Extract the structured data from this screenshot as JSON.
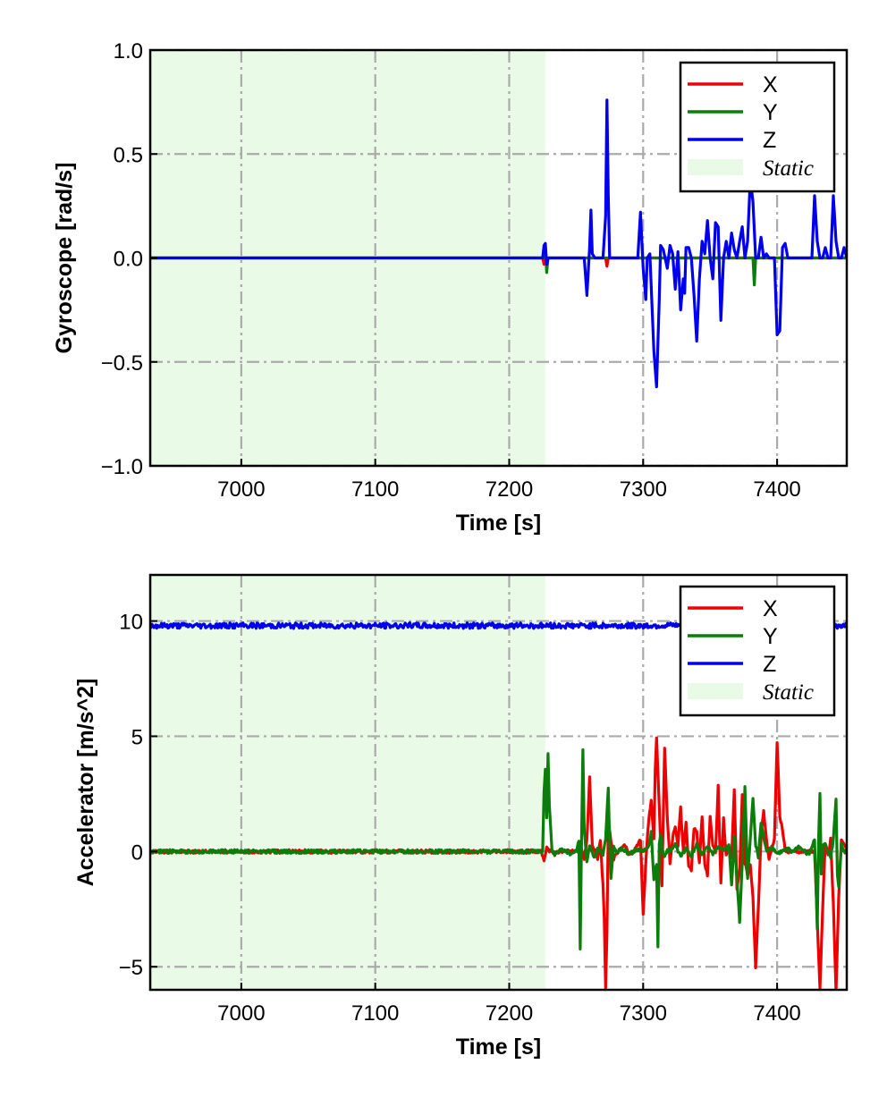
{
  "chart_data": [
    {
      "type": "line",
      "xlabel": "Time [s]",
      "ylabel": "Gyroscope [rad/s]",
      "xlim": [
        6932,
        7452
      ],
      "ylim": [
        -1.0,
        1.0
      ],
      "xticks": [
        7000,
        7100,
        7200,
        7300,
        7400
      ],
      "xtick_labels": [
        "7000",
        "7100",
        "7200",
        "7300",
        "7400"
      ],
      "yticks": [
        -1.0,
        -0.5,
        0.0,
        0.5,
        1.0
      ],
      "ytick_labels": [
        "−1.0",
        "−0.5",
        "0.0",
        "0.5",
        "1.0"
      ],
      "grid": true,
      "legend_position": "top-right",
      "static_region": {
        "label": "Static",
        "x": [
          6932,
          7227
        ],
        "color": "#e9fbe7"
      },
      "series": [
        {
          "name": "X",
          "color": "#ee0000",
          "x": [
            6932,
            7225,
            7226,
            7227,
            7228,
            7229,
            7272,
            7273,
            7274,
            7452
          ],
          "values": [
            0,
            0,
            -0.03,
            0.03,
            -0.02,
            0,
            0,
            -0.04,
            0,
            0
          ]
        },
        {
          "name": "Y",
          "color": "#0a7d0a",
          "x": [
            6932,
            7226,
            7227,
            7228,
            7229,
            7382,
            7383,
            7384,
            7385,
            7452
          ],
          "values": [
            0,
            0,
            0.05,
            -0.07,
            0,
            0,
            -0.13,
            0,
            0,
            0
          ]
        },
        {
          "name": "Z",
          "color": "#0000ee",
          "x": [
            6932,
            7225,
            7226,
            7227,
            7228,
            7229,
            7256,
            7258,
            7260,
            7261,
            7262,
            7264,
            7270,
            7272,
            7273,
            7274,
            7275,
            7278,
            7296,
            7298,
            7300,
            7302,
            7303,
            7305,
            7308,
            7310,
            7312,
            7313,
            7315,
            7318,
            7320,
            7322,
            7324,
            7326,
            7328,
            7330,
            7331,
            7332,
            7334,
            7336,
            7338,
            7340,
            7342,
            7344,
            7346,
            7348,
            7350,
            7352,
            7354,
            7356,
            7358,
            7360,
            7362,
            7364,
            7366,
            7368,
            7370,
            7372,
            7374,
            7376,
            7378,
            7380,
            7382,
            7384,
            7386,
            7388,
            7390,
            7392,
            7394,
            7398,
            7400,
            7402,
            7404,
            7406,
            7408,
            7412,
            7420,
            7426,
            7428,
            7430,
            7432,
            7434,
            7436,
            7438,
            7440,
            7442,
            7444,
            7446,
            7448,
            7450,
            7452
          ],
          "values": [
            0,
            0,
            0.06,
            0.07,
            -0.03,
            0,
            0,
            -0.18,
            0.05,
            0.23,
            0.02,
            0,
            0,
            0.2,
            0.76,
            0.3,
            0,
            0,
            0,
            0.22,
            -0.05,
            -0.2,
            0,
            0.02,
            -0.45,
            -0.62,
            -0.2,
            0.06,
            0.04,
            -0.05,
            0.06,
            0.02,
            -0.15,
            0.03,
            -0.25,
            -0.1,
            -0.17,
            0.05,
            0.05,
            0,
            -0.18,
            -0.4,
            -0.1,
            0.08,
            0.02,
            0.18,
            0,
            -0.1,
            0.17,
            0.15,
            -0.3,
            0,
            0.08,
            0,
            0.12,
            0.04,
            0,
            0.08,
            0.15,
            0,
            0.08,
            0.38,
            0.27,
            0,
            0,
            0.1,
            0,
            0.02,
            0,
            0,
            -0.37,
            -0.35,
            0.05,
            0.07,
            0,
            0,
            0,
            0,
            0.3,
            0.08,
            0,
            0,
            0.05,
            0,
            0,
            0.3,
            0.08,
            0,
            0,
            0.05,
            0
          ]
        }
      ],
      "legend": [
        {
          "label": "X",
          "color": "#ee0000",
          "kind": "line"
        },
        {
          "label": "Y",
          "color": "#0a7d0a",
          "kind": "line"
        },
        {
          "label": "Z",
          "color": "#0000ee",
          "kind": "line"
        },
        {
          "label": "Static",
          "color": "#e9fbe7",
          "kind": "patch"
        }
      ]
    },
    {
      "type": "line",
      "xlabel": "Time [s]",
      "ylabel": "Accelerator [m/s^2]",
      "xlim": [
        6932,
        7452
      ],
      "ylim": [
        -6,
        12
      ],
      "xticks": [
        7000,
        7100,
        7200,
        7300,
        7400
      ],
      "xtick_labels": [
        "7000",
        "7100",
        "7200",
        "7300",
        "7400"
      ],
      "yticks": [
        -5,
        0,
        5,
        10
      ],
      "ytick_labels": [
        "−5",
        "0",
        "5",
        "10"
      ],
      "grid": true,
      "legend_position": "top-right",
      "static_region": {
        "label": "Static",
        "x": [
          6932,
          7227
        ],
        "color": "#e9fbe7"
      },
      "series": [
        {
          "name": "X",
          "color": "#ee0000",
          "x": [
            6932,
            7224,
            7226,
            7228,
            7230,
            7250,
            7254,
            7256,
            7258,
            7260,
            7262,
            7266,
            7268,
            7270,
            7271,
            7272,
            7273,
            7274,
            7276,
            7278,
            7282,
            7286,
            7290,
            7294,
            7298,
            7300,
            7302,
            7304,
            7306,
            7308,
            7309,
            7310,
            7312,
            7314,
            7316,
            7318,
            7320,
            7322,
            7324,
            7326,
            7328,
            7330,
            7332,
            7334,
            7336,
            7338,
            7340,
            7342,
            7344,
            7346,
            7348,
            7350,
            7352,
            7354,
            7356,
            7358,
            7360,
            7362,
            7364,
            7366,
            7368,
            7370,
            7372,
            7374,
            7376,
            7378,
            7380,
            7382,
            7384,
            7386,
            7388,
            7390,
            7392,
            7394,
            7396,
            7398,
            7400,
            7402,
            7404,
            7406,
            7410,
            7416,
            7420,
            7424,
            7428,
            7430,
            7432,
            7434,
            7436,
            7438,
            7440,
            7442,
            7444,
            7446,
            7448,
            7450,
            7452
          ],
          "values": [
            0,
            0,
            -0.4,
            0.2,
            0,
            0,
            0.1,
            -0.3,
            0.5,
            3.2,
            0.3,
            -0.3,
            0.5,
            -1.5,
            -3,
            -6,
            -3.5,
            1.2,
            0.5,
            -0.3,
            0,
            0.3,
            -0.2,
            0.1,
            0.5,
            -2.7,
            -0.5,
            1.3,
            2.2,
            0.5,
            3.5,
            5,
            2,
            -1.5,
            4.5,
            1.5,
            -0.5,
            0.6,
            1.1,
            0.3,
            1.9,
            0,
            1.2,
            -0.6,
            -0.8,
            1,
            0.8,
            -0.5,
            1.5,
            -0.5,
            -1,
            1.5,
            0.3,
            0,
            2.8,
            -1.3,
            1.4,
            -0.2,
            0.2,
            -0.3,
            2.7,
            -1.7,
            -0.8,
            2.4,
            -0.5,
            -1,
            -0.6,
            -2,
            -5,
            -2.5,
            0.6,
            1.8,
            0.5,
            -0.3,
            0.2,
            0.5,
            4.8,
            1.5,
            1,
            0,
            0,
            0,
            0,
            0,
            0,
            -3,
            -6,
            -2.5,
            0.4,
            -0.2,
            0.5,
            -2.3,
            -6,
            -2,
            0.5,
            0.3,
            0
          ],
          "noise": 0.08
        },
        {
          "name": "Y",
          "color": "#0a7d0a",
          "x": [
            6932,
            7225,
            7226,
            7227,
            7228,
            7229,
            7230,
            7232,
            7234,
            7240,
            7246,
            7250,
            7252,
            7253,
            7254,
            7255,
            7256,
            7258,
            7260,
            7262,
            7264,
            7266,
            7268,
            7270,
            7272,
            7274,
            7275,
            7276,
            7278,
            7280,
            7284,
            7290,
            7296,
            7300,
            7304,
            7306,
            7308,
            7310,
            7311,
            7312,
            7313,
            7314,
            7316,
            7318,
            7320,
            7324,
            7328,
            7332,
            7336,
            7340,
            7344,
            7348,
            7352,
            7356,
            7360,
            7364,
            7366,
            7368,
            7372,
            7374,
            7376,
            7378,
            7380,
            7382,
            7384,
            7386,
            7388,
            7392,
            7396,
            7400,
            7404,
            7408,
            7412,
            7416,
            7420,
            7424,
            7428,
            7430,
            7431,
            7432,
            7433,
            7434,
            7436,
            7438,
            7440,
            7442,
            7444,
            7445,
            7446,
            7448,
            7450,
            7452
          ],
          "values": [
            0,
            0,
            2.5,
            3.5,
            1.5,
            4.3,
            2,
            0,
            -0.1,
            0.1,
            -0.1,
            0,
            0.5,
            -4.2,
            0.5,
            4.4,
            1,
            -0.5,
            0.3,
            0,
            -0.3,
            0.2,
            0,
            -0.2,
            0.5,
            2.8,
            0.5,
            -1.2,
            0.3,
            0,
            0.1,
            -0.1,
            0.1,
            0,
            0.2,
            0.8,
            -1.3,
            -0.5,
            -4.1,
            0.3,
            0.7,
            0.2,
            -0.3,
            0.1,
            0,
            0.3,
            -0.2,
            0.1,
            -0.2,
            0.3,
            -0.1,
            0.2,
            -0.1,
            0.2,
            0,
            0.3,
            -1.5,
            0.6,
            -3,
            -0.5,
            2.8,
            -1.2,
            0.5,
            2.3,
            0.3,
            -0.2,
            1.2,
            0,
            0.2,
            -0.1,
            0,
            0.1,
            0,
            0.2,
            0,
            -0.1,
            0.5,
            -3.3,
            0.5,
            2.6,
            -1,
            0.2,
            0.4,
            0,
            -0.3,
            0.5,
            2.3,
            -1,
            -1.5,
            0.3,
            0,
            0
          ],
          "noise": 0.08
        },
        {
          "name": "Z",
          "color": "#0000ee",
          "x": [
            6932,
            7452
          ],
          "values": [
            9.8,
            9.8
          ],
          "noise": 0.12
        }
      ],
      "legend": [
        {
          "label": "X",
          "color": "#ee0000",
          "kind": "line"
        },
        {
          "label": "Y",
          "color": "#0a7d0a",
          "kind": "line"
        },
        {
          "label": "Z",
          "color": "#0000ee",
          "kind": "line"
        },
        {
          "label": "Static",
          "color": "#e9fbe7",
          "kind": "patch"
        }
      ]
    }
  ]
}
